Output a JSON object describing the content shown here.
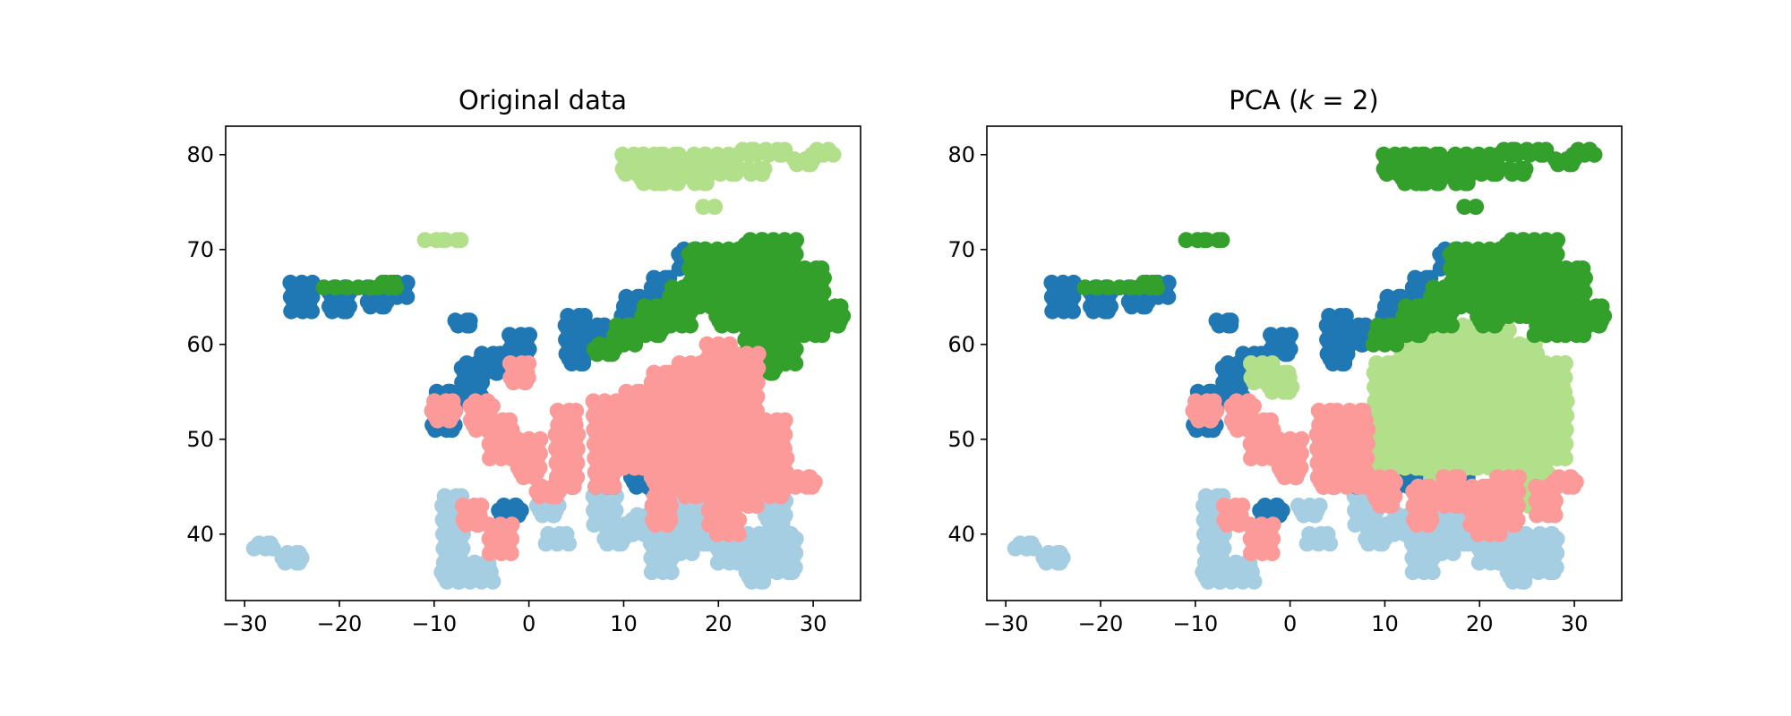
{
  "figure": {
    "background": "#ffffff"
  },
  "chart_data": [
    {
      "type": "scatter",
      "title": "Original data",
      "xlabel": "",
      "ylabel": "",
      "xlim": [
        -32,
        35
      ],
      "ylim": [
        33,
        83
      ],
      "xticks": [
        -30,
        -20,
        -10,
        0,
        10,
        20,
        30
      ],
      "yticks": [
        40,
        50,
        60,
        70,
        80
      ],
      "xtick_labels": [
        "−30",
        "−20",
        "−10",
        "0",
        "10",
        "20",
        "30"
      ],
      "ytick_labels": [
        "40",
        "50",
        "60",
        "70",
        "80"
      ],
      "grid": false,
      "legend": "none",
      "series": [
        {
          "color": "#a6cee3",
          "regions": [
            [
              -8,
              35,
              44
            ],
            [
              -5,
              35,
              37
            ],
            [
              2,
              42,
              43
            ],
            [
              8,
              41,
              44
            ],
            [
              12,
              40,
              42
            ],
            [
              14,
              36,
              46
            ],
            [
              18,
              39,
              44
            ],
            [
              21,
              37,
              41
            ],
            [
              24,
              35,
              40
            ],
            [
              27,
              36,
              40
            ],
            [
              26,
              41,
              44
            ],
            [
              -28,
              38.5,
              39
            ],
            [
              -25,
              37,
              38
            ],
            [
              3,
              39,
              40
            ],
            [
              9,
              39,
              41
            ],
            [
              16,
              38,
              44
            ]
          ]
        },
        {
          "color": "#1f78b4",
          "regions": [
            [
              -24,
              63.5,
              66.5
            ],
            [
              -20,
              63.5,
              66
            ],
            [
              -16,
              64,
              66
            ],
            [
              -14,
              65,
              66.5
            ],
            [
              -7,
              62,
              62.5
            ],
            [
              -9,
              51,
              55
            ],
            [
              -6,
              54,
              58
            ],
            [
              -4,
              57,
              59
            ],
            [
              -1,
              59,
              61
            ],
            [
              5,
              58,
              63
            ],
            [
              7,
              60,
              62
            ],
            [
              11,
              63,
              65
            ],
            [
              14,
              64,
              67
            ],
            [
              17,
              68,
              70
            ],
            [
              4,
              45,
              47
            ],
            [
              8,
              45,
              46
            ],
            [
              12,
              45,
              46
            ],
            [
              -2,
              42,
              43
            ],
            [
              18,
              45,
              46
            ]
          ]
        },
        {
          "color": "#b2df8a",
          "regions": [
            [
              11,
              78,
              80
            ],
            [
              13,
              77,
              80
            ],
            [
              15,
              77,
              80
            ],
            [
              18,
              77,
              80
            ],
            [
              21,
              78,
              80
            ],
            [
              23,
              80,
              80.5
            ],
            [
              26,
              80,
              80.5
            ],
            [
              29,
              79,
              79.5
            ],
            [
              31,
              80,
              80.5
            ],
            [
              19,
              74.5,
              74.5
            ],
            [
              24,
              78,
              78.5
            ],
            [
              -10,
              71,
              71
            ],
            [
              -8,
              71,
              71
            ]
          ]
        },
        {
          "color": "#33a02c",
          "regions": [
            [
              10,
              60,
              62
            ],
            [
              13,
              61,
              64
            ],
            [
              16,
              62,
              66
            ],
            [
              18,
              64,
              70
            ],
            [
              21,
              62,
              70
            ],
            [
              24,
              60,
              71
            ],
            [
              27,
              58,
              71
            ],
            [
              30,
              61,
              68
            ],
            [
              32,
              62,
              64
            ],
            [
              -21,
              66,
              66
            ],
            [
              -18,
              66,
              66
            ],
            [
              -15,
              66,
              66.5
            ],
            [
              8,
              59,
              60
            ],
            [
              25,
              57,
              59
            ]
          ]
        },
        {
          "color": "#fb9a99",
          "regions": [
            [
              -9,
              52,
              54
            ],
            [
              -5,
              51,
              54
            ],
            [
              -3,
              48,
              52
            ],
            [
              0,
              46,
              50
            ],
            [
              4,
              45,
              53
            ],
            [
              8,
              45,
              54
            ],
            [
              11,
              47,
              55
            ],
            [
              14,
              45,
              57
            ],
            [
              17,
              44,
              58
            ],
            [
              20,
              45,
              60
            ],
            [
              23,
              43,
              59
            ],
            [
              26,
              44,
              52
            ],
            [
              29,
              45,
              46
            ],
            [
              -6,
              41,
              43
            ],
            [
              -3,
              38,
              41
            ],
            [
              14,
              41,
              44
            ],
            [
              20,
              41,
              45
            ],
            [
              2,
              44,
              45
            ],
            [
              -1,
              56,
              58
            ],
            [
              21,
              40,
              42
            ]
          ]
        }
      ]
    },
    {
      "type": "scatter",
      "title": "PCA (k = 2)",
      "title_prefix": "PCA (",
      "title_var": "k",
      "title_suffix": " = 2)",
      "xlabel": "",
      "ylabel": "",
      "xlim": [
        -32,
        35
      ],
      "ylim": [
        33,
        83
      ],
      "xticks": [
        -30,
        -20,
        -10,
        0,
        10,
        20,
        30
      ],
      "yticks": [
        40,
        50,
        60,
        70,
        80
      ],
      "xtick_labels": [
        "−30",
        "−20",
        "−10",
        "0",
        "10",
        "20",
        "30"
      ],
      "ytick_labels": [
        "40",
        "50",
        "60",
        "70",
        "80"
      ],
      "grid": false,
      "legend": "none",
      "series": [
        {
          "color": "#a6cee3",
          "regions": [
            [
              -8,
              35,
              44
            ],
            [
              -5,
              35,
              37
            ],
            [
              2,
              42,
              43
            ],
            [
              8,
              41,
              44
            ],
            [
              12,
              40,
              42
            ],
            [
              14,
              36,
              46
            ],
            [
              18,
              39,
              44
            ],
            [
              21,
              37,
              41
            ],
            [
              24,
              35,
              40
            ],
            [
              27,
              36,
              40
            ],
            [
              -28,
              38.5,
              39
            ],
            [
              -25,
              37,
              38
            ],
            [
              3,
              39,
              40
            ],
            [
              9,
              39,
              41
            ],
            [
              16,
              38,
              44
            ]
          ]
        },
        {
          "color": "#1f78b4",
          "regions": [
            [
              -24,
              63.5,
              66.5
            ],
            [
              -20,
              63.5,
              66
            ],
            [
              -16,
              64,
              66
            ],
            [
              -14,
              65,
              66.5
            ],
            [
              -7,
              62,
              62.5
            ],
            [
              -9,
              51,
              55
            ],
            [
              -6,
              54,
              58
            ],
            [
              -4,
              57,
              59
            ],
            [
              -1,
              59,
              61
            ],
            [
              5,
              58,
              63
            ],
            [
              7,
              60,
              62
            ],
            [
              11,
              63,
              65
            ],
            [
              14,
              64,
              67
            ],
            [
              17,
              68,
              70
            ],
            [
              4,
              45,
              47
            ],
            [
              8,
              45,
              46
            ],
            [
              12,
              45,
              46
            ],
            [
              -2,
              42,
              43
            ],
            [
              18,
              45,
              46
            ]
          ]
        },
        {
          "color": "#b2df8a",
          "regions": [
            [
              10,
              47,
              58
            ],
            [
              13,
              47,
              60
            ],
            [
              16,
              46,
              61
            ],
            [
              19,
              47,
              62
            ],
            [
              22,
              47,
              63
            ],
            [
              25,
              47,
              60
            ],
            [
              28,
              48,
              58
            ],
            [
              26,
              43,
              48
            ],
            [
              -3,
              56,
              58
            ],
            [
              -1,
              55,
              57
            ]
          ]
        },
        {
          "color": "#33a02c",
          "regions": [
            [
              11,
              78,
              80
            ],
            [
              13,
              77,
              80
            ],
            [
              15,
              77,
              80
            ],
            [
              18,
              77,
              80
            ],
            [
              21,
              78,
              80
            ],
            [
              23,
              80,
              80.5
            ],
            [
              26,
              80,
              80.5
            ],
            [
              29,
              79,
              79.5
            ],
            [
              31,
              80,
              80.5
            ],
            [
              19,
              74.5,
              74.5
            ],
            [
              24,
              78,
              78.5
            ],
            [
              -10,
              71,
              71
            ],
            [
              -8,
              71,
              71
            ],
            [
              10,
              60,
              62
            ],
            [
              13,
              61,
              64
            ],
            [
              16,
              62,
              66
            ],
            [
              18,
              64,
              70
            ],
            [
              21,
              62,
              70
            ],
            [
              24,
              63,
              71
            ],
            [
              27,
              61,
              71
            ],
            [
              30,
              61,
              68
            ],
            [
              32,
              62,
              64
            ],
            [
              -21,
              66,
              66
            ],
            [
              -18,
              66,
              66
            ],
            [
              -15,
              66,
              66.5
            ]
          ]
        },
        {
          "color": "#fb9a99",
          "regions": [
            [
              -9,
              52,
              54
            ],
            [
              -5,
              51,
              54
            ],
            [
              -3,
              48,
              52
            ],
            [
              0,
              46,
              50
            ],
            [
              4,
              45,
              53
            ],
            [
              7,
              45,
              53
            ],
            [
              10,
              43,
              46
            ],
            [
              14,
              41,
              45
            ],
            [
              17,
              43,
              46
            ],
            [
              20,
              41,
              45
            ],
            [
              23,
              41,
              46
            ],
            [
              27,
              42,
              45
            ],
            [
              29,
              45,
              46
            ],
            [
              -6,
              41,
              43
            ],
            [
              -3,
              38,
              41
            ],
            [
              21,
              40,
              42
            ]
          ]
        }
      ]
    }
  ]
}
